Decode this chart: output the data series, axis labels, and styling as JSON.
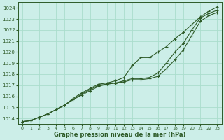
{
  "xlabel": "Graphe pression niveau de la mer (hPa)",
  "bg_color": "#cceee8",
  "grid_color": "#aaddcc",
  "line_color": "#2d5a27",
  "xmin": -0.5,
  "xmax": 23.5,
  "ymin": 1013.5,
  "ymax": 1024.5,
  "yticks": [
    1014,
    1015,
    1016,
    1017,
    1018,
    1019,
    1020,
    1021,
    1022,
    1023,
    1024
  ],
  "xticks": [
    0,
    1,
    2,
    3,
    4,
    5,
    6,
    7,
    8,
    9,
    10,
    11,
    12,
    13,
    14,
    15,
    16,
    17,
    18,
    19,
    20,
    21,
    22,
    23
  ],
  "line_base_x": [
    0,
    1,
    2,
    3,
    4,
    5,
    6,
    7,
    8,
    9,
    10,
    11,
    12,
    13,
    14,
    15,
    16,
    17,
    18,
    19,
    20,
    21,
    22,
    23
  ],
  "line_base_y": [
    1013.7,
    1013.8,
    1014.1,
    1014.4,
    1014.8,
    1015.2,
    1015.7,
    1016.1,
    1016.5,
    1016.9,
    1017.1,
    1017.2,
    1017.3,
    1017.5,
    1017.5,
    1017.6,
    1017.8,
    1018.5,
    1019.3,
    1020.2,
    1021.5,
    1022.8,
    1023.3,
    1023.6
  ],
  "line_mid_x": [
    0,
    1,
    2,
    3,
    4,
    5,
    6,
    7,
    8,
    9,
    10,
    11,
    12,
    13,
    14,
    15,
    16,
    17,
    18,
    19,
    20,
    21,
    22,
    23
  ],
  "line_mid_y": [
    1013.7,
    1013.8,
    1014.1,
    1014.4,
    1014.8,
    1015.2,
    1015.7,
    1016.2,
    1016.6,
    1017.0,
    1017.1,
    1017.2,
    1017.4,
    1017.6,
    1017.6,
    1017.7,
    1018.1,
    1019.0,
    1020.0,
    1020.8,
    1022.0,
    1023.1,
    1023.5,
    1023.8
  ],
  "line_high_x": [
    0,
    1,
    2,
    3,
    4,
    5,
    6,
    7,
    8,
    9,
    10,
    11,
    12,
    13,
    14,
    15,
    16,
    17,
    18,
    19,
    20,
    21,
    22,
    23
  ],
  "line_high_y": [
    1013.7,
    1013.8,
    1014.1,
    1014.4,
    1014.8,
    1015.2,
    1015.8,
    1016.3,
    1016.7,
    1017.1,
    1017.2,
    1017.4,
    1017.7,
    1018.8,
    1019.5,
    1019.5,
    1020.0,
    1020.5,
    1021.2,
    1021.8,
    1022.5,
    1023.2,
    1023.7,
    1024.1
  ]
}
